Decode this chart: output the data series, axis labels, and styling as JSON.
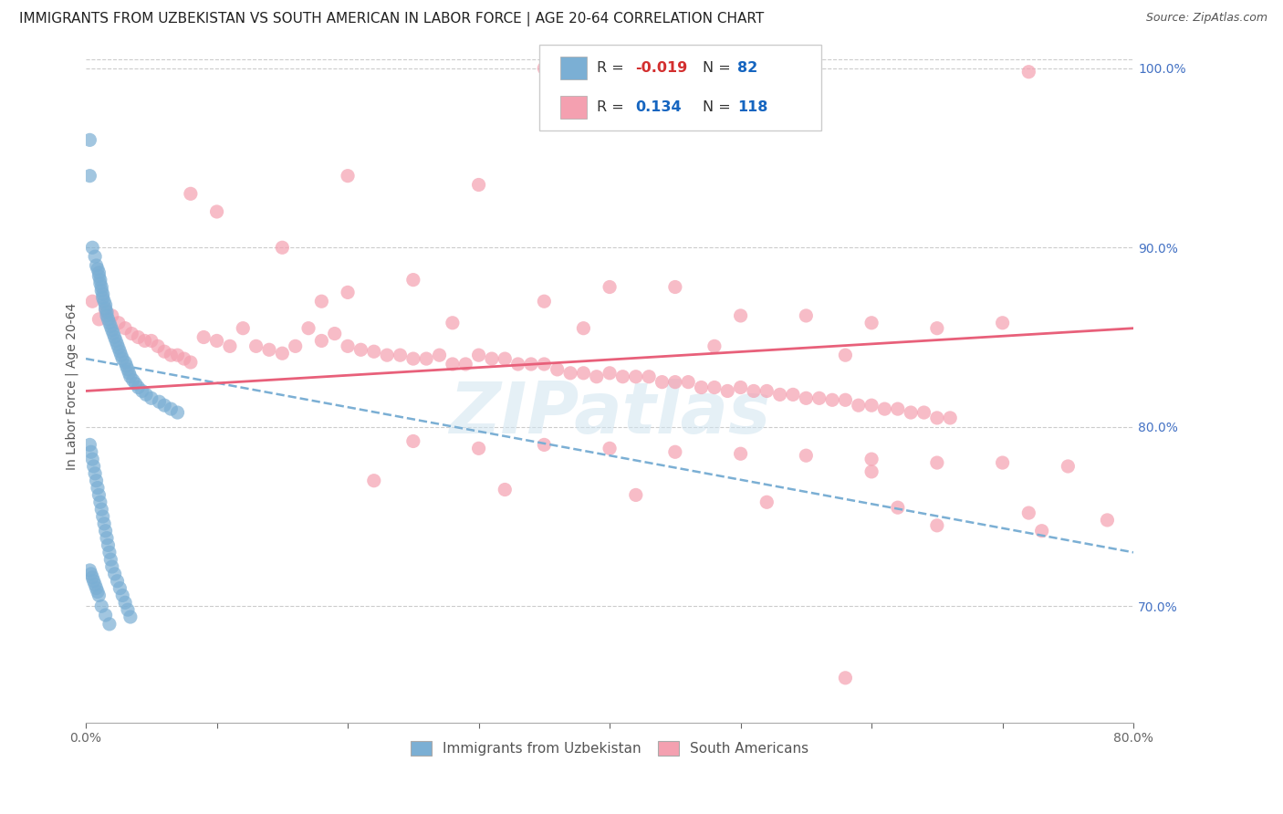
{
  "title": "IMMIGRANTS FROM UZBEKISTAN VS SOUTH AMERICAN IN LABOR FORCE | AGE 20-64 CORRELATION CHART",
  "source": "Source: ZipAtlas.com",
  "ylabel": "In Labor Force | Age 20-64",
  "xlim": [
    0.0,
    0.8
  ],
  "ylim": [
    0.635,
    1.01
  ],
  "xticks": [
    0.0,
    0.1,
    0.2,
    0.3,
    0.4,
    0.5,
    0.6,
    0.7,
    0.8
  ],
  "xticklabels": [
    "0.0%",
    "",
    "",
    "",
    "",
    "",
    "",
    "",
    "80.0%"
  ],
  "yticks_right": [
    0.7,
    0.8,
    0.9,
    1.0
  ],
  "yticks_right_labels": [
    "70.0%",
    "80.0%",
    "90.0%",
    "100.0%"
  ],
  "blue_color": "#7bafd4",
  "pink_color": "#f4a0b0",
  "watermark": "ZIPatlas",
  "blue_scatter_x": [
    0.003,
    0.003,
    0.005,
    0.007,
    0.008,
    0.009,
    0.01,
    0.01,
    0.011,
    0.011,
    0.012,
    0.012,
    0.013,
    0.013,
    0.014,
    0.015,
    0.015,
    0.016,
    0.016,
    0.017,
    0.018,
    0.019,
    0.02,
    0.021,
    0.022,
    0.023,
    0.024,
    0.025,
    0.026,
    0.027,
    0.028,
    0.03,
    0.031,
    0.032,
    0.033,
    0.034,
    0.036,
    0.038,
    0.04,
    0.043,
    0.046,
    0.05,
    0.056,
    0.06,
    0.065,
    0.07,
    0.003,
    0.004,
    0.005,
    0.006,
    0.007,
    0.008,
    0.009,
    0.01,
    0.011,
    0.012,
    0.013,
    0.014,
    0.015,
    0.016,
    0.017,
    0.018,
    0.019,
    0.02,
    0.022,
    0.024,
    0.026,
    0.028,
    0.03,
    0.032,
    0.034,
    0.003,
    0.004,
    0.005,
    0.006,
    0.007,
    0.008,
    0.009,
    0.01,
    0.012,
    0.015,
    0.018
  ],
  "blue_scatter_y": [
    0.96,
    0.94,
    0.9,
    0.895,
    0.89,
    0.888,
    0.886,
    0.884,
    0.882,
    0.88,
    0.878,
    0.876,
    0.874,
    0.872,
    0.87,
    0.868,
    0.866,
    0.864,
    0.862,
    0.86,
    0.858,
    0.856,
    0.854,
    0.852,
    0.85,
    0.848,
    0.846,
    0.844,
    0.842,
    0.84,
    0.838,
    0.836,
    0.834,
    0.832,
    0.83,
    0.828,
    0.826,
    0.824,
    0.822,
    0.82,
    0.818,
    0.816,
    0.814,
    0.812,
    0.81,
    0.808,
    0.79,
    0.786,
    0.782,
    0.778,
    0.774,
    0.77,
    0.766,
    0.762,
    0.758,
    0.754,
    0.75,
    0.746,
    0.742,
    0.738,
    0.734,
    0.73,
    0.726,
    0.722,
    0.718,
    0.714,
    0.71,
    0.706,
    0.702,
    0.698,
    0.694,
    0.72,
    0.718,
    0.716,
    0.714,
    0.712,
    0.71,
    0.708,
    0.706,
    0.7,
    0.695,
    0.69
  ],
  "pink_scatter_x": [
    0.005,
    0.01,
    0.015,
    0.02,
    0.025,
    0.03,
    0.035,
    0.04,
    0.045,
    0.05,
    0.055,
    0.06,
    0.065,
    0.07,
    0.075,
    0.08,
    0.09,
    0.1,
    0.11,
    0.12,
    0.13,
    0.14,
    0.15,
    0.16,
    0.17,
    0.18,
    0.19,
    0.2,
    0.21,
    0.22,
    0.23,
    0.24,
    0.25,
    0.26,
    0.27,
    0.28,
    0.29,
    0.3,
    0.31,
    0.32,
    0.33,
    0.34,
    0.35,
    0.36,
    0.37,
    0.38,
    0.39,
    0.4,
    0.41,
    0.42,
    0.43,
    0.44,
    0.45,
    0.46,
    0.47,
    0.48,
    0.49,
    0.5,
    0.51,
    0.52,
    0.53,
    0.54,
    0.55,
    0.56,
    0.57,
    0.58,
    0.59,
    0.6,
    0.61,
    0.62,
    0.63,
    0.64,
    0.65,
    0.66,
    0.35,
    0.72,
    0.2,
    0.3,
    0.1,
    0.15,
    0.08,
    0.4,
    0.25,
    0.55,
    0.45,
    0.6,
    0.5,
    0.35,
    0.2,
    0.65,
    0.7,
    0.18,
    0.28,
    0.38,
    0.48,
    0.58,
    0.25,
    0.3,
    0.35,
    0.4,
    0.45,
    0.5,
    0.55,
    0.6,
    0.65,
    0.7,
    0.75,
    0.6,
    0.22,
    0.32,
    0.42,
    0.52,
    0.62,
    0.72,
    0.78,
    0.65,
    0.73,
    0.58
  ],
  "pink_scatter_y": [
    0.87,
    0.86,
    0.865,
    0.862,
    0.858,
    0.855,
    0.852,
    0.85,
    0.848,
    0.848,
    0.845,
    0.842,
    0.84,
    0.84,
    0.838,
    0.836,
    0.85,
    0.848,
    0.845,
    0.855,
    0.845,
    0.843,
    0.841,
    0.845,
    0.855,
    0.848,
    0.852,
    0.845,
    0.843,
    0.842,
    0.84,
    0.84,
    0.838,
    0.838,
    0.84,
    0.835,
    0.835,
    0.84,
    0.838,
    0.838,
    0.835,
    0.835,
    0.835,
    0.832,
    0.83,
    0.83,
    0.828,
    0.83,
    0.828,
    0.828,
    0.828,
    0.825,
    0.825,
    0.825,
    0.822,
    0.822,
    0.82,
    0.822,
    0.82,
    0.82,
    0.818,
    0.818,
    0.816,
    0.816,
    0.815,
    0.815,
    0.812,
    0.812,
    0.81,
    0.81,
    0.808,
    0.808,
    0.805,
    0.805,
    1.0,
    0.998,
    0.94,
    0.935,
    0.92,
    0.9,
    0.93,
    0.878,
    0.882,
    0.862,
    0.878,
    0.858,
    0.862,
    0.87,
    0.875,
    0.855,
    0.858,
    0.87,
    0.858,
    0.855,
    0.845,
    0.84,
    0.792,
    0.788,
    0.79,
    0.788,
    0.786,
    0.785,
    0.784,
    0.782,
    0.78,
    0.78,
    0.778,
    0.775,
    0.77,
    0.765,
    0.762,
    0.758,
    0.755,
    0.752,
    0.748,
    0.745,
    0.742,
    0.66
  ],
  "blue_trend_x0": 0.0,
  "blue_trend_x1": 0.8,
  "blue_trend_y0": 0.838,
  "blue_trend_y1": 0.73,
  "pink_trend_x0": 0.0,
  "pink_trend_x1": 0.8,
  "pink_trend_y0": 0.82,
  "pink_trend_y1": 0.855,
  "title_fontsize": 11,
  "axis_label_fontsize": 10,
  "tick_fontsize": 10,
  "legend_fontsize": 12
}
